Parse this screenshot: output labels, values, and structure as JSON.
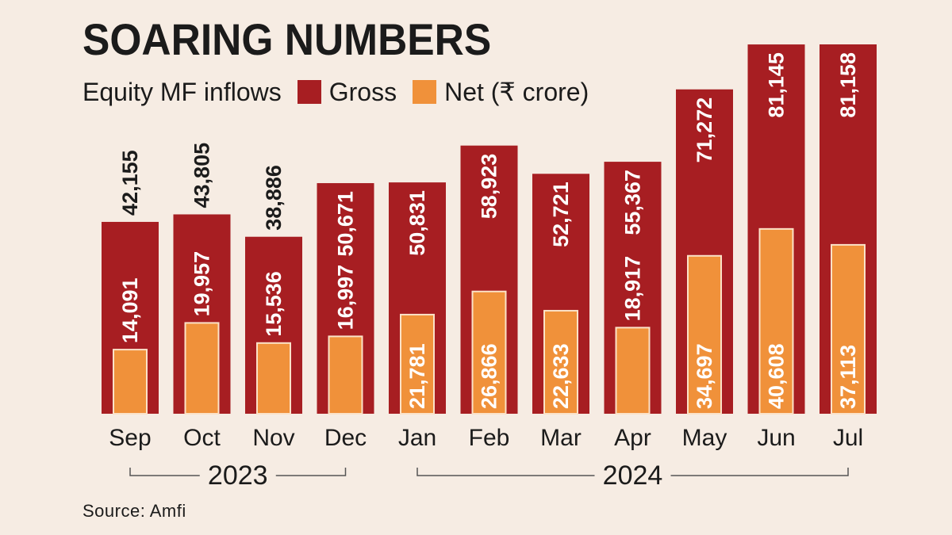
{
  "title": "SOARING NUMBERS",
  "legend": {
    "label": "Equity MF inflows",
    "gross_label": "Gross",
    "net_label": "Net (₹ crore)"
  },
  "colors": {
    "gross": "#a71e22",
    "net": "#f0913a",
    "net_border": "#fbe2c8",
    "label_dark": "#1b1b1b",
    "label_light": "#ffffff",
    "background": "#f6ece3"
  },
  "source": "Source: Amfi",
  "chart_data": {
    "type": "bar",
    "title": "SOARING NUMBERS",
    "subtitle": "Equity MF inflows (₹ crore)",
    "categories": [
      "Sep",
      "Oct",
      "Nov",
      "Dec",
      "Jan",
      "Feb",
      "Mar",
      "Apr",
      "May",
      "Jun",
      "Jul"
    ],
    "value_labels": {
      "gross": [
        "42,155",
        "43,805",
        "38,886",
        "50,671",
        "50,831",
        "58,923",
        "52,721",
        "55,367",
        "71,272",
        "81,145",
        "81,158"
      ],
      "net": [
        "14,091",
        "19,957",
        "15,536",
        "16,997",
        "21,781",
        "26,866",
        "22,633",
        "18,917",
        "34,697",
        "40,608",
        "37,113"
      ]
    },
    "series": [
      {
        "name": "Gross",
        "values": [
          42155,
          43805,
          38886,
          50671,
          50831,
          58923,
          52721,
          55367,
          71272,
          81145,
          81158
        ]
      },
      {
        "name": "Net (₹ crore)",
        "values": [
          14091,
          19957,
          15536,
          16997,
          21781,
          26866,
          22633,
          18917,
          34697,
          40608,
          37113
        ]
      }
    ],
    "year_groups": [
      {
        "label": "2023",
        "start": 0,
        "end": 3
      },
      {
        "label": "2024",
        "start": 4,
        "end": 10
      }
    ],
    "ylim": [
      0,
      81158
    ],
    "grid": false,
    "legend_position": "top-left"
  }
}
